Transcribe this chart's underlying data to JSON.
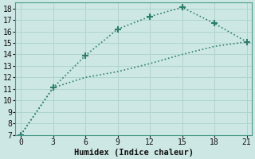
{
  "line1_x": [
    0,
    3,
    6,
    9,
    12,
    15,
    18,
    21
  ],
  "line1_y": [
    7,
    11.1,
    13.9,
    16.2,
    17.3,
    18.1,
    16.7,
    15.1
  ],
  "line2_x": [
    0,
    3,
    6,
    9,
    12,
    15,
    18,
    21
  ],
  "line2_y": [
    7,
    11.1,
    12.0,
    12.5,
    13.2,
    14.0,
    14.7,
    15.1
  ],
  "line_color": "#2e7d6e",
  "bg_color": "#cde8e4",
  "grid_color": "#b0d4ce",
  "xlabel": "Humidex (Indice chaleur)",
  "xlim": [
    -0.5,
    21.5
  ],
  "ylim": [
    7,
    18.5
  ],
  "xticks": [
    0,
    3,
    6,
    9,
    12,
    15,
    18,
    21
  ],
  "yticks": [
    7,
    8,
    9,
    10,
    11,
    12,
    13,
    14,
    15,
    16,
    17,
    18
  ],
  "xlabel_fontsize": 7.5,
  "tick_fontsize": 7
}
